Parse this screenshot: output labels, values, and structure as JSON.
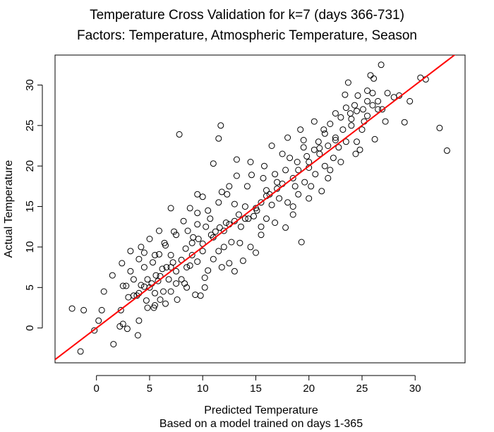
{
  "chart_data": {
    "type": "scatter",
    "title": "Temperature Cross Validation for k=7 (days 366-731)",
    "subtitle": "Factors: Temperature, Atmospheric Temperature, Season",
    "xlabel": "Predicted Temperature",
    "xlabel2": "Based on a model trained on days 1-365",
    "ylabel": "Actual Temperature",
    "xlim": [
      -3.9,
      34.7
    ],
    "ylim": [
      -4.3,
      33.7
    ],
    "xticks": [
      "0",
      "5",
      "10",
      "15",
      "20",
      "25",
      "30"
    ],
    "yticks": [
      "0",
      "5",
      "10",
      "15",
      "20",
      "25",
      "30"
    ],
    "xtick_values": [
      0,
      5,
      10,
      15,
      20,
      25,
      30
    ],
    "ytick_values": [
      0,
      5,
      10,
      15,
      20,
      25,
      30
    ],
    "reference_line": {
      "type": "y = x",
      "color": "#ff0000"
    },
    "point_color": "#000000",
    "grid": false,
    "points": [
      [
        -2.3,
        2.4
      ],
      [
        -1.2,
        2.2
      ],
      [
        -1.5,
        -2.9
      ],
      [
        -0.2,
        -0.3
      ],
      [
        0.2,
        0.9
      ],
      [
        0.5,
        2.2
      ],
      [
        0.7,
        4.5
      ],
      [
        1.6,
        -2.0
      ],
      [
        1.5,
        6.5
      ],
      [
        2.2,
        0.2
      ],
      [
        2.3,
        2.2
      ],
      [
        2.5,
        0.5
      ],
      [
        2.5,
        5.2
      ],
      [
        2.8,
        5.2
      ],
      [
        2.9,
        -0.1
      ],
      [
        2.4,
        8.0
      ],
      [
        3.2,
        9.5
      ],
      [
        3.5,
        4.0
      ],
      [
        3.2,
        7.0
      ],
      [
        3.8,
        4.0
      ],
      [
        3.9,
        -0.9
      ],
      [
        4.0,
        0.9
      ],
      [
        4.0,
        8.5
      ],
      [
        4.2,
        10.0
      ],
      [
        4.2,
        5.3
      ],
      [
        4.5,
        5.1
      ],
      [
        4.5,
        9.3
      ],
      [
        4.7,
        3.4
      ],
      [
        4.8,
        6.0
      ],
      [
        5.0,
        11.0
      ],
      [
        5.2,
        5.5
      ],
      [
        5.3,
        8.1
      ],
      [
        5.4,
        2.5
      ],
      [
        5.5,
        4.3
      ],
      [
        5.6,
        6.5
      ],
      [
        5.8,
        5.8
      ],
      [
        5.9,
        9.1
      ],
      [
        5.9,
        12.0
      ],
      [
        6.2,
        7.3
      ],
      [
        6.3,
        4.5
      ],
      [
        6.4,
        10.5
      ],
      [
        6.5,
        3.0
      ],
      [
        6.6,
        7.5
      ],
      [
        6.8,
        6.0
      ],
      [
        7.0,
        9.0
      ],
      [
        7.0,
        14.8
      ],
      [
        7.2,
        8.1
      ],
      [
        7.3,
        11.9
      ],
      [
        7.5,
        5.5
      ],
      [
        7.5,
        7.0
      ],
      [
        7.6,
        3.5
      ],
      [
        7.8,
        23.9
      ],
      [
        8.0,
        6.0
      ],
      [
        8.3,
        5.5
      ],
      [
        8.4,
        9.8
      ],
      [
        8.5,
        7.5
      ],
      [
        8.8,
        7.7
      ],
      [
        8.6,
        12.0
      ],
      [
        8.8,
        14.8
      ],
      [
        9.0,
        10.5
      ],
      [
        9.1,
        11.2
      ],
      [
        9.3,
        4.1
      ],
      [
        9.5,
        8.2
      ],
      [
        9.5,
        16.5
      ],
      [
        9.6,
        11.0
      ],
      [
        9.8,
        4.0
      ],
      [
        10.0,
        9.5
      ],
      [
        10.0,
        16.2
      ],
      [
        10.2,
        5.0
      ],
      [
        10.3,
        12.5
      ],
      [
        10.5,
        7.1
      ],
      [
        10.7,
        13.5
      ],
      [
        10.8,
        11.5
      ],
      [
        11.0,
        8.5
      ],
      [
        11.2,
        11.9
      ],
      [
        11.0,
        20.3
      ],
      [
        11.5,
        9.5
      ],
      [
        11.6,
        12.4
      ],
      [
        11.5,
        23.4
      ],
      [
        11.8,
        16.8
      ],
      [
        11.7,
        25.0
      ],
      [
        12.0,
        10.0
      ],
      [
        12.2,
        13.0
      ],
      [
        12.3,
        16.5
      ],
      [
        12.5,
        12.8
      ],
      [
        12.5,
        8.0
      ],
      [
        12.7,
        10.6
      ],
      [
        13.0,
        7.0
      ],
      [
        13.0,
        15.3
      ],
      [
        13.2,
        20.8
      ],
      [
        13.4,
        14.0
      ],
      [
        13.6,
        12.5
      ],
      [
        13.8,
        8.3
      ],
      [
        14.0,
        15.0
      ],
      [
        14.2,
        17.5
      ],
      [
        14.3,
        13.5
      ],
      [
        14.5,
        10.0
      ],
      [
        14.6,
        18.9
      ],
      [
        14.8,
        13.8
      ],
      [
        15.0,
        9.3
      ],
      [
        15.1,
        14.5
      ],
      [
        15.5,
        15.5
      ],
      [
        15.5,
        12.5
      ],
      [
        15.7,
        18.5
      ],
      [
        15.8,
        20.0
      ],
      [
        16.0,
        13.5
      ],
      [
        16.0,
        17.0
      ],
      [
        16.3,
        16.5
      ],
      [
        16.5,
        15.2
      ],
      [
        16.8,
        19.0
      ],
      [
        17.0,
        18.0
      ],
      [
        17.2,
        16.0
      ],
      [
        17.5,
        17.8
      ],
      [
        17.8,
        12.4
      ],
      [
        17.8,
        19.5
      ],
      [
        18.0,
        15.5
      ],
      [
        18.2,
        21.0
      ],
      [
        18.5,
        14.0
      ],
      [
        18.7,
        17.5
      ],
      [
        18.9,
        20.5
      ],
      [
        19.0,
        19.5
      ],
      [
        19.0,
        16.5
      ],
      [
        19.2,
        24.5
      ],
      [
        19.3,
        10.6
      ],
      [
        19.5,
        22.3
      ],
      [
        19.6,
        18.0
      ],
      [
        19.8,
        21.2
      ],
      [
        20.0,
        20.5
      ],
      [
        20.2,
        17.5
      ],
      [
        20.5,
        22.0
      ],
      [
        20.6,
        19.0
      ],
      [
        20.9,
        23.0
      ],
      [
        21.0,
        21.5
      ],
      [
        21.2,
        16.9
      ],
      [
        21.4,
        24.5
      ],
      [
        21.5,
        20.0
      ],
      [
        21.8,
        22.5
      ],
      [
        22.0,
        19.5
      ],
      [
        22.0,
        25.2
      ],
      [
        22.3,
        21.0
      ],
      [
        22.5,
        23.5
      ],
      [
        22.8,
        22.3
      ],
      [
        23.0,
        26.0
      ],
      [
        23.2,
        24.5
      ],
      [
        23.4,
        28.8
      ],
      [
        23.5,
        23.0
      ],
      [
        23.7,
        30.3
      ],
      [
        23.9,
        26.5
      ],
      [
        24.0,
        25.0
      ],
      [
        24.3,
        27.5
      ],
      [
        24.4,
        21.5
      ],
      [
        24.6,
        28.7
      ],
      [
        24.8,
        22.0
      ],
      [
        25.0,
        24.5
      ],
      [
        25.1,
        27.0
      ],
      [
        25.2,
        25.5
      ],
      [
        25.5,
        29.3
      ],
      [
        25.5,
        26.2
      ],
      [
        25.8,
        31.2
      ],
      [
        26.0,
        27.5
      ],
      [
        26.1,
        30.8
      ],
      [
        26.2,
        23.3
      ],
      [
        26.5,
        28.0
      ],
      [
        26.8,
        32.5
      ],
      [
        26.9,
        27.0
      ],
      [
        27.2,
        25.5
      ],
      [
        27.4,
        29.0
      ],
      [
        28.0,
        28.5
      ],
      [
        28.5,
        28.7
      ],
      [
        29.0,
        25.4
      ],
      [
        29.5,
        28.0
      ],
      [
        30.5,
        30.9
      ],
      [
        31.0,
        30.7
      ],
      [
        32.3,
        24.7
      ],
      [
        33.0,
        21.9
      ],
      [
        26.5,
        27.0
      ],
      [
        24.0,
        25.8
      ],
      [
        22.5,
        23.2
      ],
      [
        21.0,
        22.2
      ],
      [
        20.0,
        19.8
      ],
      [
        18.5,
        18.5
      ],
      [
        17.0,
        17.2
      ],
      [
        16.0,
        16.3
      ],
      [
        15.0,
        14.8
      ],
      [
        14.0,
        13.5
      ],
      [
        13.0,
        13.2
      ],
      [
        12.0,
        12.0
      ],
      [
        11.0,
        11.2
      ],
      [
        10.0,
        10.4
      ],
      [
        9.0,
        9.0
      ],
      [
        8.0,
        8.4
      ],
      [
        7.0,
        7.5
      ],
      [
        6.0,
        6.4
      ],
      [
        5.0,
        5.0
      ],
      [
        4.0,
        4.3
      ],
      [
        3.0,
        3.8
      ],
      [
        8.2,
        13.2
      ],
      [
        9.5,
        14.2
      ],
      [
        11.5,
        15.5
      ],
      [
        13.2,
        18.8
      ],
      [
        14.5,
        20.5
      ],
      [
        16.5,
        22.5
      ],
      [
        18.0,
        23.5
      ],
      [
        20.5,
        25.5
      ],
      [
        22.5,
        26.5
      ],
      [
        23.5,
        27.2
      ],
      [
        6.5,
        10.2
      ],
      [
        5.5,
        9.0
      ],
      [
        4.5,
        7.5
      ],
      [
        3.5,
        6.0
      ],
      [
        7.5,
        11.5
      ],
      [
        9.5,
        12.8
      ],
      [
        10.5,
        14.5
      ],
      [
        12.5,
        17.5
      ],
      [
        17.5,
        21.5
      ],
      [
        19.5,
        23.2
      ],
      [
        21.5,
        24.0
      ],
      [
        24.5,
        26.8
      ],
      [
        25.5,
        28.0
      ],
      [
        26.0,
        29.0
      ],
      [
        10.2,
        6.2
      ],
      [
        11.8,
        7.5
      ],
      [
        13.5,
        10.5
      ],
      [
        15.5,
        11.5
      ],
      [
        16.8,
        13.0
      ],
      [
        18.5,
        15.0
      ],
      [
        20.0,
        16.0
      ],
      [
        21.8,
        18.5
      ],
      [
        23.0,
        20.5
      ],
      [
        24.5,
        23.0
      ],
      [
        7.0,
        4.5
      ],
      [
        8.5,
        5.0
      ],
      [
        6.0,
        3.5
      ],
      [
        5.5,
        2.8
      ],
      [
        4.8,
        2.5
      ]
    ]
  }
}
